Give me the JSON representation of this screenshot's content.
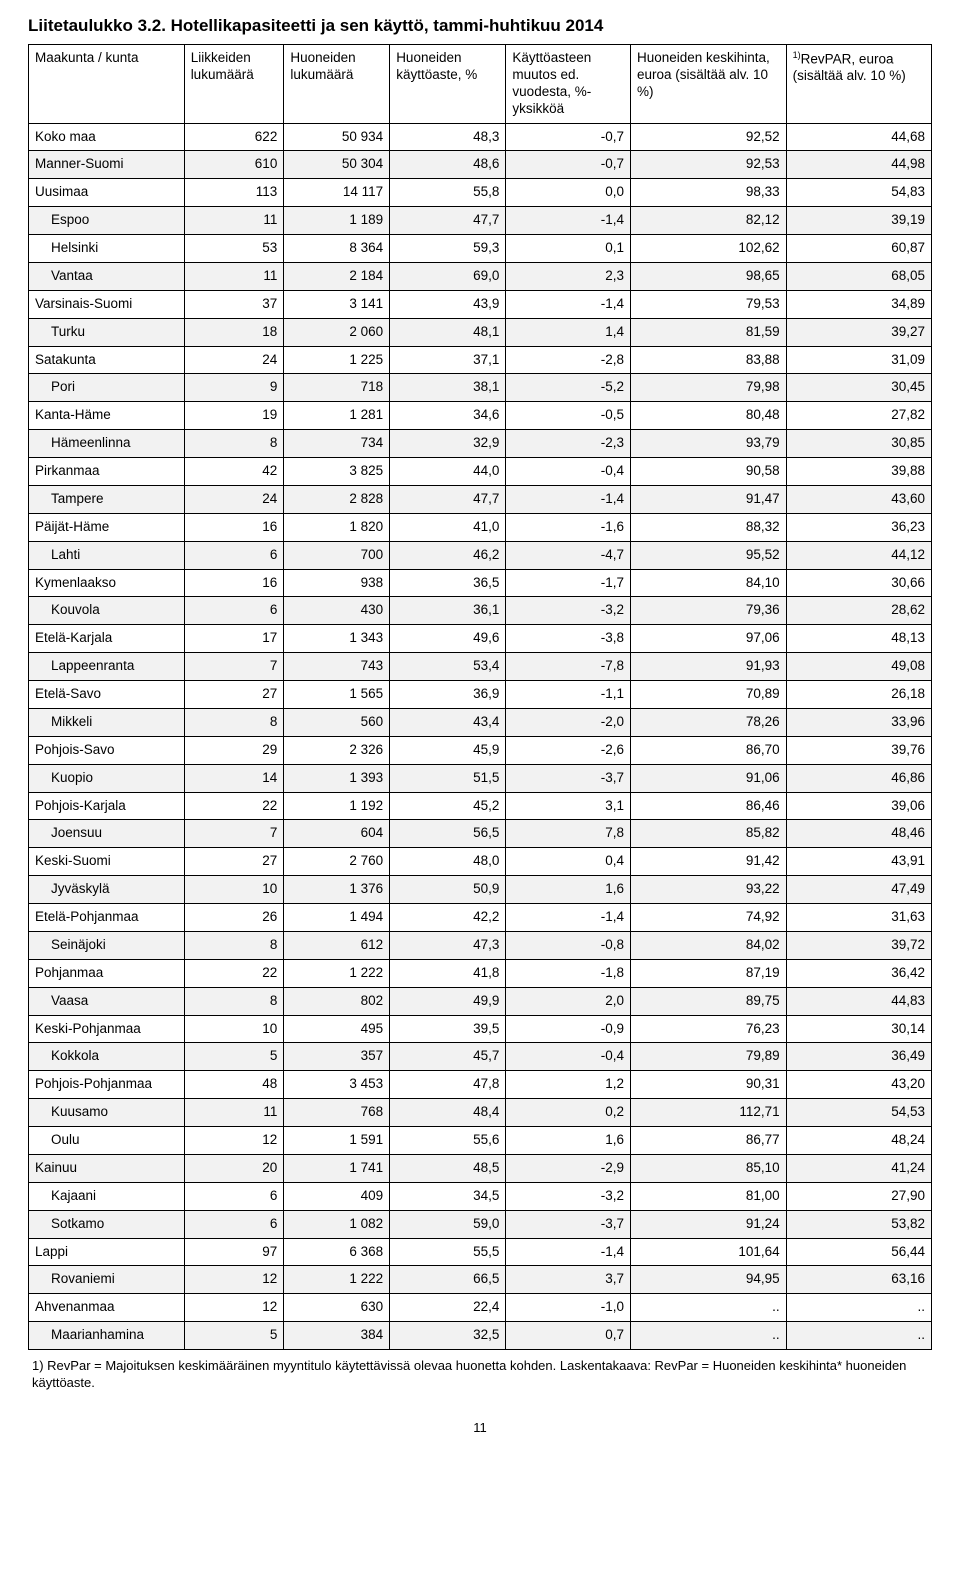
{
  "title": "Liitetaulukko 3.2. Hotellikapasiteetti ja sen käyttö, tammi-huhtikuu 2014",
  "columns": [
    "Maakunta / kunta",
    "Liikkeiden lukumäärä",
    "Huoneiden lukumäärä",
    "Huoneiden käyttöaste, %",
    "Käyttöasteen muutos ed. vuodesta, %-yksikköä",
    "Huoneiden keskihinta, euroa (sisältää alv. 10 %)",
    "RevPAR, euroa (sisältää alv. 10 %)"
  ],
  "footnote_marker": "1)",
  "rows": [
    {
      "lbl": "Koko maa",
      "i": 0,
      "c": [
        "622",
        "50 934",
        "48,3",
        "-0,7",
        "92,52",
        "44,68"
      ]
    },
    {
      "lbl": "Manner-Suomi",
      "i": 0,
      "c": [
        "610",
        "50 304",
        "48,6",
        "-0,7",
        "92,53",
        "44,98"
      ]
    },
    {
      "lbl": "Uusimaa",
      "i": 0,
      "c": [
        "113",
        "14 117",
        "55,8",
        "0,0",
        "98,33",
        "54,83"
      ]
    },
    {
      "lbl": "Espoo",
      "i": 1,
      "c": [
        "11",
        "1 189",
        "47,7",
        "-1,4",
        "82,12",
        "39,19"
      ]
    },
    {
      "lbl": "Helsinki",
      "i": 1,
      "c": [
        "53",
        "8 364",
        "59,3",
        "0,1",
        "102,62",
        "60,87"
      ]
    },
    {
      "lbl": "Vantaa",
      "i": 1,
      "c": [
        "11",
        "2 184",
        "69,0",
        "2,3",
        "98,65",
        "68,05"
      ]
    },
    {
      "lbl": "Varsinais-Suomi",
      "i": 0,
      "c": [
        "37",
        "3 141",
        "43,9",
        "-1,4",
        "79,53",
        "34,89"
      ]
    },
    {
      "lbl": "Turku",
      "i": 1,
      "c": [
        "18",
        "2 060",
        "48,1",
        "1,4",
        "81,59",
        "39,27"
      ]
    },
    {
      "lbl": "Satakunta",
      "i": 0,
      "c": [
        "24",
        "1 225",
        "37,1",
        "-2,8",
        "83,88",
        "31,09"
      ]
    },
    {
      "lbl": "Pori",
      "i": 1,
      "c": [
        "9",
        "718",
        "38,1",
        "-5,2",
        "79,98",
        "30,45"
      ]
    },
    {
      "lbl": "Kanta-Häme",
      "i": 0,
      "c": [
        "19",
        "1 281",
        "34,6",
        "-0,5",
        "80,48",
        "27,82"
      ]
    },
    {
      "lbl": "Hämeenlinna",
      "i": 1,
      "c": [
        "8",
        "734",
        "32,9",
        "-2,3",
        "93,79",
        "30,85"
      ]
    },
    {
      "lbl": "Pirkanmaa",
      "i": 0,
      "c": [
        "42",
        "3 825",
        "44,0",
        "-0,4",
        "90,58",
        "39,88"
      ]
    },
    {
      "lbl": "Tampere",
      "i": 1,
      "c": [
        "24",
        "2 828",
        "47,7",
        "-1,4",
        "91,47",
        "43,60"
      ]
    },
    {
      "lbl": "Päijät-Häme",
      "i": 0,
      "c": [
        "16",
        "1 820",
        "41,0",
        "-1,6",
        "88,32",
        "36,23"
      ]
    },
    {
      "lbl": "Lahti",
      "i": 1,
      "c": [
        "6",
        "700",
        "46,2",
        "-4,7",
        "95,52",
        "44,12"
      ]
    },
    {
      "lbl": "Kymenlaakso",
      "i": 0,
      "c": [
        "16",
        "938",
        "36,5",
        "-1,7",
        "84,10",
        "30,66"
      ]
    },
    {
      "lbl": "Kouvola",
      "i": 1,
      "c": [
        "6",
        "430",
        "36,1",
        "-3,2",
        "79,36",
        "28,62"
      ]
    },
    {
      "lbl": "Etelä-Karjala",
      "i": 0,
      "c": [
        "17",
        "1 343",
        "49,6",
        "-3,8",
        "97,06",
        "48,13"
      ]
    },
    {
      "lbl": "Lappeenranta",
      "i": 1,
      "c": [
        "7",
        "743",
        "53,4",
        "-7,8",
        "91,93",
        "49,08"
      ]
    },
    {
      "lbl": "Etelä-Savo",
      "i": 0,
      "c": [
        "27",
        "1 565",
        "36,9",
        "-1,1",
        "70,89",
        "26,18"
      ]
    },
    {
      "lbl": "Mikkeli",
      "i": 1,
      "c": [
        "8",
        "560",
        "43,4",
        "-2,0",
        "78,26",
        "33,96"
      ]
    },
    {
      "lbl": "Pohjois-Savo",
      "i": 0,
      "c": [
        "29",
        "2 326",
        "45,9",
        "-2,6",
        "86,70",
        "39,76"
      ]
    },
    {
      "lbl": "Kuopio",
      "i": 1,
      "c": [
        "14",
        "1 393",
        "51,5",
        "-3,7",
        "91,06",
        "46,86"
      ]
    },
    {
      "lbl": "Pohjois-Karjala",
      "i": 0,
      "c": [
        "22",
        "1 192",
        "45,2",
        "3,1",
        "86,46",
        "39,06"
      ]
    },
    {
      "lbl": "Joensuu",
      "i": 1,
      "c": [
        "7",
        "604",
        "56,5",
        "7,8",
        "85,82",
        "48,46"
      ]
    },
    {
      "lbl": "Keski-Suomi",
      "i": 0,
      "c": [
        "27",
        "2 760",
        "48,0",
        "0,4",
        "91,42",
        "43,91"
      ]
    },
    {
      "lbl": "Jyväskylä",
      "i": 1,
      "c": [
        "10",
        "1 376",
        "50,9",
        "1,6",
        "93,22",
        "47,49"
      ]
    },
    {
      "lbl": "Etelä-Pohjanmaa",
      "i": 0,
      "c": [
        "26",
        "1 494",
        "42,2",
        "-1,4",
        "74,92",
        "31,63"
      ]
    },
    {
      "lbl": "Seinäjoki",
      "i": 1,
      "c": [
        "8",
        "612",
        "47,3",
        "-0,8",
        "84,02",
        "39,72"
      ]
    },
    {
      "lbl": "Pohjanmaa",
      "i": 0,
      "c": [
        "22",
        "1 222",
        "41,8",
        "-1,8",
        "87,19",
        "36,42"
      ]
    },
    {
      "lbl": "Vaasa",
      "i": 1,
      "c": [
        "8",
        "802",
        "49,9",
        "2,0",
        "89,75",
        "44,83"
      ]
    },
    {
      "lbl": "Keski-Pohjanmaa",
      "i": 0,
      "c": [
        "10",
        "495",
        "39,5",
        "-0,9",
        "76,23",
        "30,14"
      ]
    },
    {
      "lbl": "Kokkola",
      "i": 1,
      "c": [
        "5",
        "357",
        "45,7",
        "-0,4",
        "79,89",
        "36,49"
      ]
    },
    {
      "lbl": "Pohjois-Pohjanmaa",
      "i": 0,
      "c": [
        "48",
        "3 453",
        "47,8",
        "1,2",
        "90,31",
        "43,20"
      ]
    },
    {
      "lbl": "Kuusamo",
      "i": 1,
      "c": [
        "11",
        "768",
        "48,4",
        "0,2",
        "112,71",
        "54,53"
      ]
    },
    {
      "lbl": "Oulu",
      "i": 1,
      "c": [
        "12",
        "1 591",
        "55,6",
        "1,6",
        "86,77",
        "48,24"
      ]
    },
    {
      "lbl": "Kainuu",
      "i": 0,
      "c": [
        "20",
        "1 741",
        "48,5",
        "-2,9",
        "85,10",
        "41,24"
      ]
    },
    {
      "lbl": "Kajaani",
      "i": 1,
      "c": [
        "6",
        "409",
        "34,5",
        "-3,2",
        "81,00",
        "27,90"
      ]
    },
    {
      "lbl": "Sotkamo",
      "i": 1,
      "c": [
        "6",
        "1 082",
        "59,0",
        "-3,7",
        "91,24",
        "53,82"
      ]
    },
    {
      "lbl": "Lappi",
      "i": 0,
      "c": [
        "97",
        "6 368",
        "55,5",
        "-1,4",
        "101,64",
        "56,44"
      ]
    },
    {
      "lbl": "Rovaniemi",
      "i": 1,
      "c": [
        "12",
        "1 222",
        "66,5",
        "3,7",
        "94,95",
        "63,16"
      ]
    },
    {
      "lbl": "Ahvenanmaa",
      "i": 0,
      "c": [
        "12",
        "630",
        "22,4",
        "-1,0",
        "..",
        ".."
      ]
    },
    {
      "lbl": "Maarianhamina",
      "i": 1,
      "c": [
        "5",
        "384",
        "32,5",
        "0,7",
        "..",
        ".."
      ]
    }
  ],
  "footnote": "1) RevPar = Majoituksen keskimääräinen myyntitulo käytettävissä olevaa huonetta kohden. Laskentakaava: RevPar = Huoneiden keskihinta* huoneiden käyttöaste.",
  "page_number": "11"
}
